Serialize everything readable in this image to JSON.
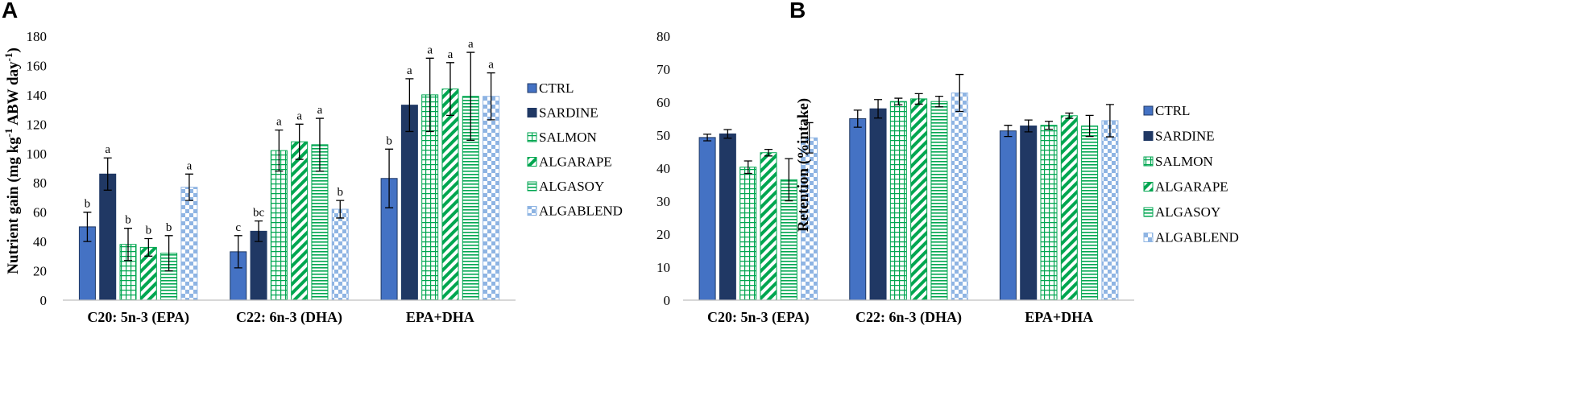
{
  "series_styles": [
    {
      "name": "CTRL",
      "pattern": "solid",
      "color": "#4472C4"
    },
    {
      "name": "SARDINE",
      "pattern": "solid",
      "color": "#203864"
    },
    {
      "name": "SALMON",
      "pattern": "grid",
      "color": "#00A650"
    },
    {
      "name": "ALGARAPE",
      "pattern": "diagonal",
      "color": "#00A650"
    },
    {
      "name": "ALGASOY",
      "pattern": "horizontal",
      "color": "#00A650"
    },
    {
      "name": "ALGABLEND",
      "pattern": "checker",
      "color": "#8EB4E3"
    }
  ],
  "chart_data": [
    {
      "panel": "A",
      "type": "bar",
      "ylabel": "Nutrient gain (mg kg-1 ABW day-1)",
      "ylim": [
        0,
        180
      ],
      "yticks": [
        0,
        20,
        40,
        60,
        80,
        100,
        120,
        140,
        160,
        180
      ],
      "categories": [
        "C20: 5n-3 (EPA)",
        "C22: 6n-3 (DHA)",
        "EPA+DHA"
      ],
      "series": [
        {
          "name": "CTRL",
          "values": [
            50,
            33,
            83
          ],
          "errors": [
            10,
            11,
            20
          ],
          "letters": [
            "b",
            "c",
            "b"
          ]
        },
        {
          "name": "SARDINE",
          "values": [
            86,
            47,
            133
          ],
          "errors": [
            11,
            7,
            18
          ],
          "letters": [
            "a",
            "bc",
            "a"
          ]
        },
        {
          "name": "SALMON",
          "values": [
            38,
            102,
            140
          ],
          "errors": [
            11,
            14,
            25
          ],
          "letters": [
            "b",
            "a",
            "a"
          ]
        },
        {
          "name": "ALGARAPE",
          "values": [
            36,
            108,
            144
          ],
          "errors": [
            6,
            12,
            18
          ],
          "letters": [
            "b",
            "a",
            "a"
          ]
        },
        {
          "name": "ALGASOY",
          "values": [
            32,
            106,
            139
          ],
          "errors": [
            12,
            18,
            30
          ],
          "letters": [
            "b",
            "a",
            "a"
          ]
        },
        {
          "name": "ALGABLEND",
          "values": [
            77,
            62,
            139
          ],
          "errors": [
            9,
            6,
            16
          ],
          "letters": [
            "a",
            "b",
            "a"
          ]
        }
      ]
    },
    {
      "panel": "B",
      "type": "bar",
      "ylabel": "Retention (%intake)",
      "ylim": [
        0,
        80
      ],
      "yticks": [
        0,
        10,
        20,
        30,
        40,
        50,
        60,
        70,
        80
      ],
      "categories": [
        "C20: 5n-3 (EPA)",
        "C22: 6n-3 (DHA)",
        "EPA+DHA"
      ],
      "series": [
        {
          "name": "CTRL",
          "values": [
            49.3,
            55,
            51.3
          ],
          "errors": [
            1,
            2.6,
            1.7
          ]
        },
        {
          "name": "SARDINE",
          "values": [
            50.4,
            58,
            52.8
          ],
          "errors": [
            1.3,
            2.8,
            1.8
          ]
        },
        {
          "name": "SALMON",
          "values": [
            40.3,
            60.2,
            53
          ],
          "errors": [
            1.9,
            1,
            1.2
          ]
        },
        {
          "name": "ALGARAPE",
          "values": [
            44.7,
            61,
            55.9
          ],
          "errors": [
            1,
            1.6,
            0.8
          ]
        },
        {
          "name": "ALGASOY",
          "values": [
            36.5,
            60.2,
            52.8
          ],
          "errors": [
            6.4,
            1.6,
            3.2
          ]
        },
        {
          "name": "ALGABLEND",
          "values": [
            49.2,
            62.8,
            54.4
          ],
          "errors": [
            4.6,
            5.6,
            4.9
          ]
        }
      ]
    }
  ]
}
